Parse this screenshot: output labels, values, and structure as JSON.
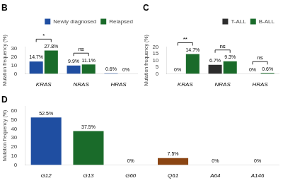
{
  "chart_data": [
    {
      "type": "bar",
      "title": "B",
      "categories": [
        "KRAS",
        "NRAS",
        "HRAS"
      ],
      "series": [
        {
          "name": "Newly diagnosed",
          "color": "#1f4ea1",
          "values": [
            14.7,
            9.9,
            0.6
          ],
          "value_labels": [
            "14.7%",
            "9.9%",
            "0.6%"
          ]
        },
        {
          "name": "Relapsed",
          "color": "#1a6b2a",
          "values": [
            27.8,
            11.1,
            0.0
          ],
          "value_labels": [
            "27.8%",
            "11.1%",
            "0%"
          ]
        }
      ],
      "ylabel": "Mutation frequency (%)",
      "ylim": [
        0,
        32
      ],
      "yticks": [
        0,
        10,
        20,
        30
      ],
      "data_labels": true,
      "legend": "upper right",
      "grid": false,
      "annotations": [
        {
          "text": "*",
          "category": "KRAS"
        },
        {
          "text": "ns",
          "category": "NRAS"
        }
      ]
    },
    {
      "type": "bar",
      "title": "C",
      "categories": [
        "KRAS",
        "NRAS",
        "HRAS"
      ],
      "series": [
        {
          "name": "T-ALL",
          "color": "#2d2d2d",
          "values": [
            0.0,
            6.7,
            0.0
          ],
          "value_labels": [
            "0%",
            "6.7%",
            "0%"
          ]
        },
        {
          "name": "B-ALL",
          "color": "#1a6b2a",
          "values": [
            14.7,
            9.3,
            0.6
          ],
          "value_labels": [
            "14.7%",
            "9.3%",
            "0.6%"
          ]
        }
      ],
      "ylabel": "Mutation frequency (%)",
      "ylim": [
        0,
        20
      ],
      "yticks": [
        0,
        5,
        10,
        15,
        20
      ],
      "data_labels": true,
      "legend": "upper right",
      "grid": false,
      "annotations": [
        {
          "text": "**",
          "category": "KRAS"
        },
        {
          "text": "ns",
          "category": "NRAS"
        },
        {
          "text": "ns",
          "category": "HRAS"
        }
      ]
    },
    {
      "type": "bar",
      "title": "D",
      "categories": [
        "G12",
        "G13",
        "G60",
        "Q61",
        "A64",
        "A146"
      ],
      "values": [
        52.5,
        37.5,
        0.0,
        7.5,
        0.0,
        0.0
      ],
      "value_labels": [
        "52.5%",
        "37.5%",
        "0%",
        "7.5%",
        "0%",
        "0%"
      ],
      "colors": [
        "#1f4ea1",
        "#1a6b2a",
        "#1f4ea1",
        "#8B4513",
        "#1f4ea1",
        "#1f4ea1"
      ],
      "ylabel": "Mutation frequency (%)",
      "ylim": [
        0,
        65
      ],
      "yticks": [
        0,
        10,
        20,
        30,
        40,
        50,
        60
      ],
      "data_labels": true,
      "grid": false
    }
  ]
}
